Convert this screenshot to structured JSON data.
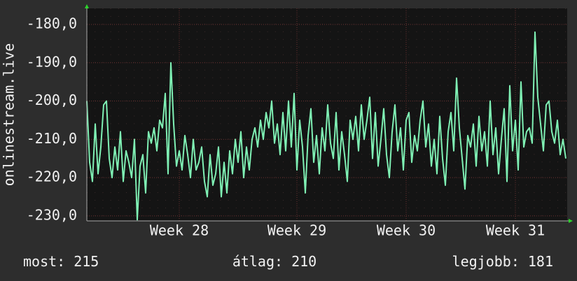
{
  "chart_data": {
    "type": "line",
    "ylabel": "onlinestream.live",
    "color": "#7ff0b4",
    "grid": true,
    "ylim": [
      -231.3,
      -175.8
    ],
    "yticks": [
      {
        "value": -180,
        "label": "-180,0"
      },
      {
        "value": -190,
        "label": "-190,0"
      },
      {
        "value": -200,
        "label": "-200,0"
      },
      {
        "value": -210,
        "label": "-210,0"
      },
      {
        "value": -220,
        "label": "-220,0"
      },
      {
        "value": -230,
        "label": "-230,0"
      }
    ],
    "xlim": [
      0,
      171.5
    ],
    "xticks": [
      {
        "value": 33,
        "label": "Week 28"
      },
      {
        "value": 75,
        "label": "Week 29"
      },
      {
        "value": 114,
        "label": "Week 30"
      },
      {
        "value": 153,
        "label": "Week 31"
      }
    ],
    "values": [
      -200,
      -216,
      -221,
      -206,
      -219,
      -212,
      -201,
      -200,
      -215,
      -220,
      -212,
      -218,
      -208,
      -221,
      -213,
      -216,
      -220,
      -210,
      -231,
      -217,
      -214,
      -224,
      -208,
      -211,
      -207,
      -213,
      -205,
      -207,
      -198,
      -219,
      -190,
      -206,
      -217,
      -213,
      -218,
      -209,
      -214,
      -220,
      -210,
      -218,
      -216,
      -212,
      -221,
      -225,
      -214,
      -222,
      -219,
      -212,
      -225,
      -216,
      -224,
      -213,
      -219,
      -210,
      -216,
      -208,
      -220,
      -212,
      -218,
      -210,
      -207,
      -212,
      -205,
      -210,
      -203,
      -207,
      -200,
      -211,
      -206,
      -214,
      -203,
      -213,
      -200,
      -212,
      -198,
      -218,
      -205,
      -212,
      -224,
      -209,
      -202,
      -216,
      -209,
      -219,
      -207,
      -213,
      -201,
      -211,
      -215,
      -203,
      -218,
      -208,
      -214,
      -221,
      -205,
      -210,
      -204,
      -213,
      -201,
      -210,
      -205,
      -199,
      -215,
      -203,
      -217,
      -210,
      -202,
      -214,
      -220,
      -208,
      -201,
      -213,
      -207,
      -218,
      -205,
      -203,
      -216,
      -209,
      -213,
      -205,
      -200,
      -212,
      -206,
      -217,
      -210,
      -219,
      -204,
      -215,
      -222,
      -208,
      -203,
      -213,
      -194,
      -207,
      -215,
      -223,
      -209,
      -212,
      -206,
      -217,
      -204,
      -213,
      -208,
      -217,
      -200,
      -214,
      -207,
      -219,
      -210,
      -202,
      -221,
      -196,
      -213,
      -205,
      -218,
      -195,
      -212,
      -208,
      -207,
      -211,
      -182,
      -199,
      -206,
      -213,
      -201,
      -200,
      -208,
      -211,
      -205,
      -214,
      -210,
      -215
    ],
    "stats": [
      {
        "label": "most:",
        "value": 215
      },
      {
        "label": "átlag:",
        "value": 210
      },
      {
        "label": "legjobb:",
        "value": 181
      }
    ]
  }
}
